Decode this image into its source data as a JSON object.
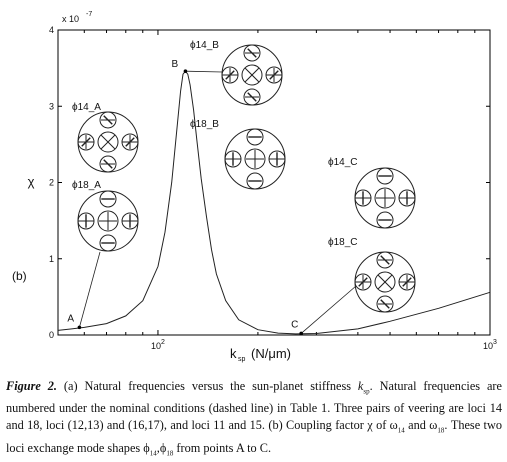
{
  "figure": {
    "panel_label": "(b)",
    "y_scale_note": "x 10",
    "y_scale_exp": "-7",
    "y_axis_label": "χ",
    "x_axis_label_main": "k",
    "x_axis_label_sub": "sp",
    "x_axis_label_unit": "(N/μm)"
  },
  "chart_data": {
    "type": "line",
    "x_scale": "log",
    "xlim": [
      50,
      1000
    ],
    "ylim": [
      0,
      4e-07
    ],
    "x_ticks": [
      {
        "value": 100,
        "base": "10",
        "exp": "2"
      },
      {
        "value": 1000,
        "base": "10",
        "exp": "3"
      }
    ],
    "y_ticks": [
      "0",
      "1",
      "2",
      "3",
      "4"
    ],
    "series": [
      {
        "x": [
          50,
          55,
          60,
          70,
          80,
          90,
          100,
          105,
          110,
          114,
          117,
          119,
          121,
          123,
          125,
          128,
          131,
          135,
          140,
          145,
          150,
          160,
          175,
          200,
          230,
          260,
          300,
          400,
          500,
          700,
          1000
        ],
        "y": [
          6e-09,
          8e-09,
          1e-08,
          1.5e-08,
          2.5e-08,
          4.5e-08,
          9e-08,
          1.35e-07,
          2e-07,
          2.7e-07,
          3.2e-07,
          3.42e-07,
          3.46e-07,
          3.42e-07,
          3.28e-07,
          2.95e-07,
          2.55e-07,
          2.05e-07,
          1.55e-07,
          1.12e-07,
          8e-08,
          4.5e-08,
          2e-08,
          7e-09,
          2.5e-09,
          1.5e-09,
          2e-09,
          8e-09,
          1.8e-08,
          3.5e-08,
          5.6e-08
        ]
      }
    ],
    "points": [
      {
        "label": "A",
        "x": 58,
        "y": 1e-08
      },
      {
        "label": "B",
        "x": 121,
        "y": 3.46e-07
      },
      {
        "label": "C",
        "x": 270,
        "y": 2e-09
      }
    ],
    "annotations": [
      {
        "label": "ϕ14_A",
        "x": 60,
        "y": 2.72e-07
      },
      {
        "label": "ϕ18_A",
        "x": 60,
        "y": 1.55e-07
      },
      {
        "label": "ϕ14_B",
        "x": 163,
        "y": 3.6e-07
      },
      {
        "label": "ϕ18_B",
        "x": 163,
        "y": 2.3e-07
      },
      {
        "label": "ϕ14_C",
        "x": 560,
        "y": 1.6e-07
      },
      {
        "label": "ϕ18_C",
        "x": 560,
        "y": 6.4e-08
      }
    ],
    "grid": false
  },
  "caption": {
    "label": "Figure 2.",
    "part1": " (a) Natural frequencies versus the sun-planet stiffness ",
    "k_main": "k",
    "k_sub": "sp",
    "part2": ". Natural frequencies are numbered under the nominal conditions (dashed line) in Table 1. Three pairs of veering are loci 14 and 18, loci (12,13) and (16,17), and loci 11 and 15. (b) Coupling factor χ of ω",
    "sub1": "14",
    "part3": " and ω",
    "sub2": "18",
    "part4": ". These two loci exchange mode shapes ϕ",
    "sub3": "14",
    "part5": ",ϕ",
    "sub4": "18",
    "part6": " from points A to C."
  }
}
